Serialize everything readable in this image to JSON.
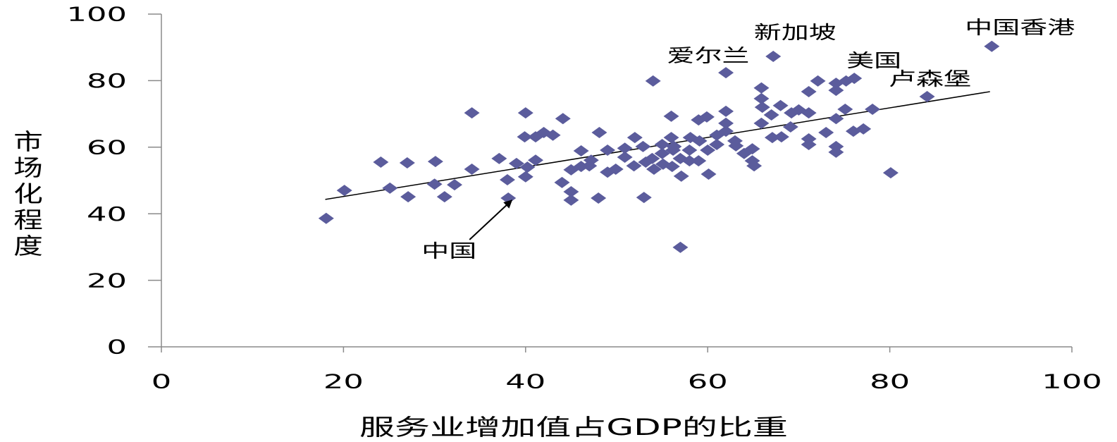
{
  "chart_data": {
    "type": "scatter",
    "xlabel": "服务业增加值占GDP的比重",
    "ylabel": "市场化程度",
    "xlim": [
      0,
      100
    ],
    "ylim": [
      0,
      100
    ],
    "xticks": [
      "0",
      "20",
      "40",
      "60",
      "80",
      "100"
    ],
    "yticks": [
      "0",
      "20",
      "40",
      "60",
      "80",
      "100"
    ],
    "grid": false,
    "legend": "none",
    "marker": "diamond",
    "colors": {
      "marker": "#5B5C9C",
      "trendline": "#000000",
      "axis": "#8A8A8A",
      "arrow": "#000000"
    },
    "series": [
      {
        "points": [
          [
            18.1,
            38.6
          ],
          [
            20.1,
            47.0
          ],
          [
            24.1,
            55.5
          ],
          [
            25.1,
            47.7
          ],
          [
            27.0,
            55.3
          ],
          [
            27.1,
            45.1
          ],
          [
            30.1,
            55.7
          ],
          [
            30.0,
            48.9
          ],
          [
            31.1,
            45.1
          ],
          [
            32.2,
            48.7
          ],
          [
            34.1,
            70.3
          ],
          [
            34.1,
            53.4
          ],
          [
            37.1,
            56.6
          ],
          [
            38.0,
            50.2
          ],
          [
            38.1,
            44.7
          ],
          [
            39.0,
            55.1
          ],
          [
            40.0,
            70.3
          ],
          [
            39.9,
            63.1
          ],
          [
            40.0,
            51.1
          ],
          [
            40.2,
            54.0
          ],
          [
            41.1,
            56.1
          ],
          [
            41.1,
            63.1
          ],
          [
            42.0,
            64.4
          ],
          [
            43.0,
            63.6
          ],
          [
            44.1,
            68.6
          ],
          [
            44.0,
            49.4
          ],
          [
            45.0,
            53.2
          ],
          [
            45.0,
            46.6
          ],
          [
            45.0,
            44.1
          ],
          [
            46.1,
            58.9
          ],
          [
            46.1,
            54.2
          ],
          [
            47.0,
            54.4
          ],
          [
            47.2,
            56.1
          ],
          [
            48.1,
            64.4
          ],
          [
            48.0,
            44.7
          ],
          [
            49.0,
            52.5
          ],
          [
            49.0,
            59.1
          ],
          [
            49.9,
            53.4
          ],
          [
            50.9,
            59.7
          ],
          [
            50.9,
            57.0
          ],
          [
            52.0,
            62.9
          ],
          [
            51.9,
            54.4
          ],
          [
            52.9,
            60.2
          ],
          [
            53.0,
            44.9
          ],
          [
            54.0,
            79.9
          ],
          [
            53.9,
            56.6
          ],
          [
            54.1,
            53.4
          ],
          [
            53.2,
            55.5
          ],
          [
            55.0,
            60.8
          ],
          [
            55.0,
            58.1
          ],
          [
            55.1,
            54.9
          ],
          [
            56.0,
            69.3
          ],
          [
            56.0,
            62.9
          ],
          [
            56.2,
            59.1
          ],
          [
            56.1,
            54.2
          ],
          [
            56.3,
            60.2
          ],
          [
            57.0,
            29.9
          ],
          [
            57.1,
            51.3
          ],
          [
            57.0,
            56.6
          ],
          [
            58.0,
            55.9
          ],
          [
            58.0,
            59.1
          ],
          [
            58.1,
            62.9
          ],
          [
            59.0,
            68.2
          ],
          [
            59.1,
            61.9
          ],
          [
            59.0,
            55.9
          ],
          [
            59.9,
            69.1
          ],
          [
            60.1,
            51.9
          ],
          [
            60.0,
            59.1
          ],
          [
            61.0,
            60.8
          ],
          [
            61.0,
            63.6
          ],
          [
            62.0,
            82.4
          ],
          [
            62.0,
            70.8
          ],
          [
            62.0,
            67.2
          ],
          [
            62.0,
            64.8
          ],
          [
            63.0,
            61.9
          ],
          [
            63.1,
            60.4
          ],
          [
            64.0,
            58.1
          ],
          [
            64.9,
            59.5
          ],
          [
            64.9,
            55.9
          ],
          [
            65.1,
            54.4
          ],
          [
            65.9,
            77.8
          ],
          [
            65.9,
            74.6
          ],
          [
            66.0,
            72.0
          ],
          [
            65.9,
            67.2
          ],
          [
            67.2,
            87.3
          ],
          [
            67.0,
            69.7
          ],
          [
            67.1,
            62.9
          ],
          [
            68.0,
            72.5
          ],
          [
            68.1,
            63.1
          ],
          [
            69.1,
            66.1
          ],
          [
            69.2,
            70.3
          ],
          [
            70.0,
            71.2
          ],
          [
            71.1,
            76.7
          ],
          [
            71.1,
            70.3
          ],
          [
            71.1,
            62.5
          ],
          [
            71.1,
            60.8
          ],
          [
            72.1,
            79.9
          ],
          [
            73.0,
            64.4
          ],
          [
            74.1,
            68.6
          ],
          [
            74.1,
            60.2
          ],
          [
            74.1,
            58.5
          ],
          [
            74.1,
            79.2
          ],
          [
            74.1,
            77.1
          ],
          [
            75.1,
            71.4
          ],
          [
            75.2,
            79.9
          ],
          [
            76.1,
            80.7
          ],
          [
            76.0,
            64.8
          ],
          [
            77.1,
            65.5
          ],
          [
            78.1,
            71.4
          ],
          [
            80.1,
            52.3
          ],
          [
            84.1,
            75.2
          ],
          [
            91.2,
            90.3
          ]
        ]
      }
    ],
    "trendline": {
      "type": "linear",
      "from": [
        18.0,
        44.3
      ],
      "to": [
        91.0,
        76.7
      ]
    },
    "annotations": [
      {
        "text": "中国香港",
        "x": 91.2,
        "y": 90.3
      },
      {
        "text": "新加坡",
        "x": 67.2,
        "y": 87.3
      },
      {
        "text": "爱尔兰",
        "x": 62.0,
        "y": 82.4
      },
      {
        "text": "美国",
        "x": 76.1,
        "y": 80.7
      },
      {
        "text": "卢森堡",
        "x": 84.1,
        "y": 75.2
      },
      {
        "text": "中国",
        "x": 38.1,
        "y": 44.7,
        "arrow": true
      }
    ]
  }
}
